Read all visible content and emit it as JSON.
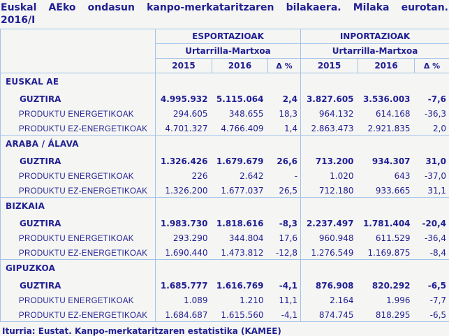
{
  "title": {
    "line1": "Euskal AEko ondasun kanpo-merkataritzaren bilakaera. Milaka eurotan.",
    "line2": "2016/I"
  },
  "footer": {
    "text": "Iturria: Eustat. Kanpo-merkataritzaren estatistika (KAMEE)"
  },
  "colors": {
    "text_navy": "#201f93",
    "border_blue": "#a3c3e8",
    "background": "#f5f5f3"
  },
  "chart_data": {
    "type": "table",
    "title": "Euskal AEko ondasun kanpo-merkataritzaren bilakaera. Milaka eurotan. 2016/I",
    "units": "Milaka eurotan (thousands of euros)",
    "groups": [
      {
        "label": "ESPORTAZIOAK",
        "period": "Urtarrilla-Martxoa"
      },
      {
        "label": "INPORTAZIOAK",
        "period": "Urtarrilla-Martxoa"
      }
    ],
    "year_columns": [
      "2015",
      "2016",
      "Δ %",
      "2015",
      "2016",
      "Δ %"
    ],
    "regions": [
      {
        "name": "EUSKAL AE",
        "rows": [
          {
            "label": "GUZTIRA",
            "total": true,
            "values": [
              "4.995.932",
              "5.115.064",
              "2,4",
              "3.827.605",
              "3.536.003",
              "-7,6"
            ]
          },
          {
            "label": "PRODUKTU ENERGETIKOAK",
            "total": false,
            "values": [
              "294.605",
              "348.655",
              "18,3",
              "964.132",
              "614.168",
              "-36,3"
            ]
          },
          {
            "label": "PRODUKTU EZ-ENERGETIKOAK",
            "total": false,
            "values": [
              "4.701.327",
              "4.766.409",
              "1,4",
              "2.863.473",
              "2.921.835",
              "2,0"
            ]
          }
        ]
      },
      {
        "name": "ARABA / ÁLAVA",
        "rows": [
          {
            "label": "GUZTIRA",
            "total": true,
            "values": [
              "1.326.426",
              "1.679.679",
              "26,6",
              "713.200",
              "934.307",
              "31,0"
            ]
          },
          {
            "label": "PRODUKTU ENERGETIKOAK",
            "total": false,
            "values": [
              "226",
              "2.642",
              "-",
              "1.020",
              "643",
              "-37,0"
            ]
          },
          {
            "label": "PRODUKTU EZ-ENERGETIKOAK",
            "total": false,
            "values": [
              "1.326.200",
              "1.677.037",
              "26,5",
              "712.180",
              "933.665",
              "31,1"
            ]
          }
        ]
      },
      {
        "name": "BIZKAIA",
        "rows": [
          {
            "label": "GUZTIRA",
            "total": true,
            "values": [
              "1.983.730",
              "1.818.616",
              "-8,3",
              "2.237.497",
              "1.781.404",
              "-20,4"
            ]
          },
          {
            "label": "PRODUKTU ENERGETIKOAK",
            "total": false,
            "values": [
              "293.290",
              "344.804",
              "17,6",
              "960.948",
              "611.529",
              "-36,4"
            ]
          },
          {
            "label": "PRODUKTU EZ-ENERGETIKOAK",
            "total": false,
            "values": [
              "1.690.440",
              "1.473.812",
              "-12,8",
              "1.276.549",
              "1.169.875",
              "-8,4"
            ]
          }
        ]
      },
      {
        "name": "GIPUZKOA",
        "rows": [
          {
            "label": "GUZTIRA",
            "total": true,
            "values": [
              "1.685.777",
              "1.616.769",
              "-4,1",
              "876.908",
              "820.292",
              "-6,5"
            ]
          },
          {
            "label": "PRODUKTU ENERGETIKOAK",
            "total": false,
            "values": [
              "1.089",
              "1.210",
              "11,1",
              "2.164",
              "1.996",
              "-7,7"
            ]
          },
          {
            "label": "PRODUKTU EZ-ENERGETIKOAK",
            "total": false,
            "values": [
              "1.684.687",
              "1.615.560",
              "-4,1",
              "874.745",
              "818.295",
              "-6,5"
            ]
          }
        ]
      }
    ],
    "source": "Iturria: Eustat. Kanpo-merkataritzaren estatistika (KAMEE)"
  }
}
